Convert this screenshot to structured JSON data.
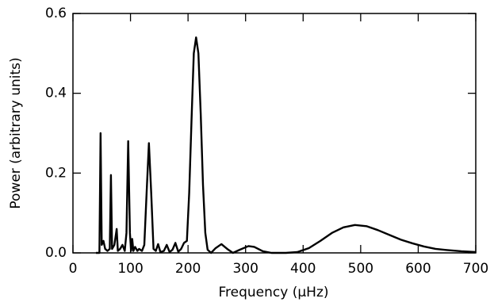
{
  "chart_data": {
    "type": "line",
    "xlabel": "Frequency (μHz)",
    "ylabel": "Power (arbitrary units)",
    "xlim": [
      0,
      700
    ],
    "xticks": [
      0,
      100,
      200,
      300,
      400,
      500,
      600,
      700
    ],
    "ylim": [
      0,
      0.6
    ],
    "yticks": [
      {
        "value": 0,
        "label": "0.0"
      },
      0.2,
      0.4,
      0.6
    ],
    "series": [
      {
        "color": "#000000",
        "x": [
          40,
          46,
          48,
          50,
          53,
          56,
          60,
          64,
          66,
          68,
          72,
          76,
          78,
          82,
          86,
          90,
          93,
          96,
          99,
          101,
          103,
          105,
          108,
          112,
          115,
          120,
          124,
          128,
          132,
          136,
          140,
          144,
          148,
          152,
          158,
          163,
          168,
          173,
          178,
          183,
          188,
          193,
          198,
          202,
          206,
          210,
          214,
          218,
          222,
          226,
          230,
          234,
          240,
          248,
          258,
          268,
          278,
          290,
          305,
          315,
          330,
          345,
          370,
          390,
          410,
          430,
          450,
          470,
          490,
          510,
          530,
          550,
          570,
          590,
          610,
          630,
          650,
          675,
          700
        ],
        "values": [
          0,
          0,
          0.3,
          0.02,
          0.03,
          0.01,
          0.005,
          0.01,
          0.195,
          0.01,
          0.02,
          0.06,
          0.005,
          0.01,
          0.02,
          0.005,
          0.05,
          0.28,
          0.05,
          0.005,
          0.035,
          0.005,
          0.015,
          0.005,
          0.01,
          0.005,
          0.02,
          0.15,
          0.275,
          0.15,
          0.01,
          0.005,
          0.022,
          0.002,
          0.005,
          0.02,
          0.002,
          0.008,
          0.025,
          0.003,
          0.01,
          0.025,
          0.03,
          0.15,
          0.33,
          0.5,
          0.54,
          0.5,
          0.35,
          0.17,
          0.05,
          0.008,
          0,
          0.012,
          0.022,
          0.01,
          0,
          0.008,
          0.017,
          0.015,
          0.004,
          0,
          0,
          0.002,
          0.012,
          0.03,
          0.05,
          0.064,
          0.07,
          0.067,
          0.057,
          0.045,
          0.033,
          0.024,
          0.016,
          0.01,
          0.007,
          0.004,
          0.002
        ]
      }
    ]
  }
}
